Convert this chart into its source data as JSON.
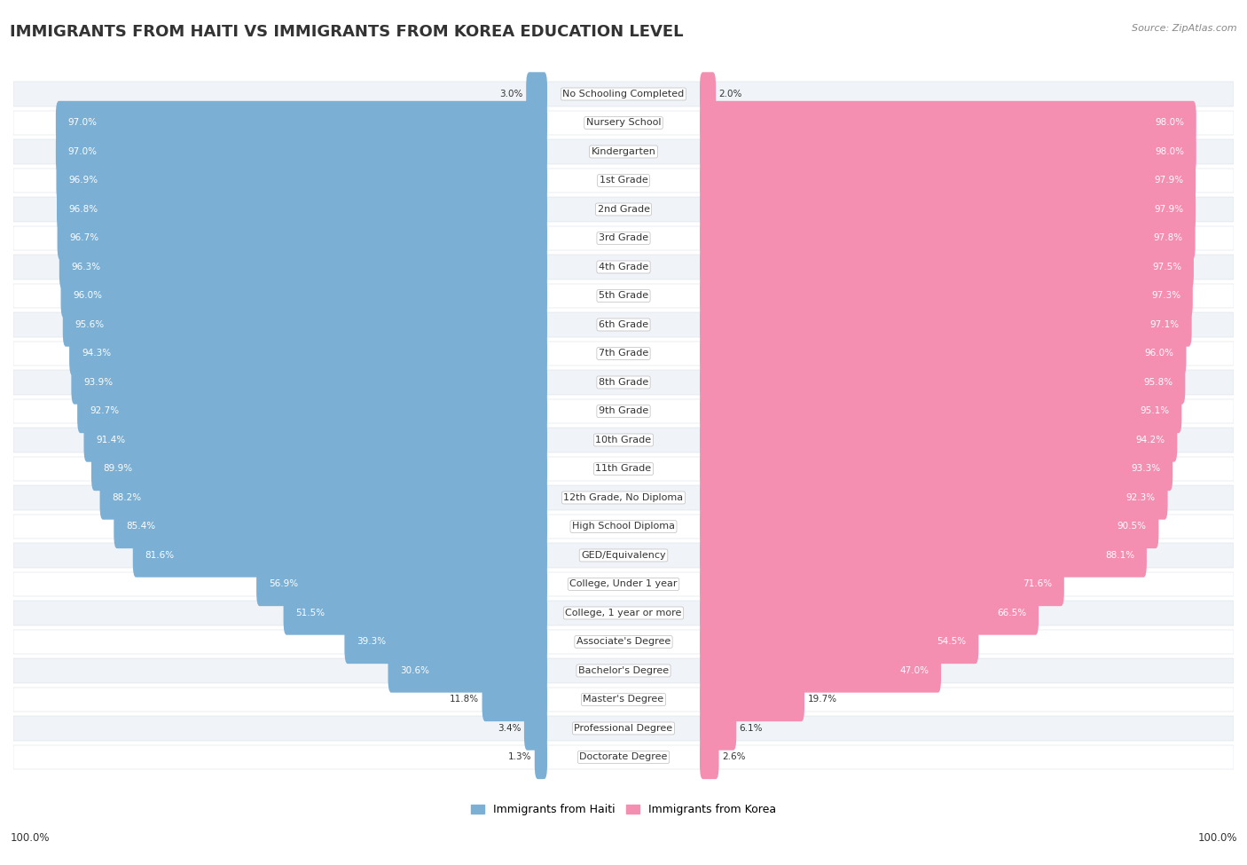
{
  "title": "IMMIGRANTS FROM HAITI VS IMMIGRANTS FROM KOREA EDUCATION LEVEL",
  "source": "Source: ZipAtlas.com",
  "categories": [
    "No Schooling Completed",
    "Nursery School",
    "Kindergarten",
    "1st Grade",
    "2nd Grade",
    "3rd Grade",
    "4th Grade",
    "5th Grade",
    "6th Grade",
    "7th Grade",
    "8th Grade",
    "9th Grade",
    "10th Grade",
    "11th Grade",
    "12th Grade, No Diploma",
    "High School Diploma",
    "GED/Equivalency",
    "College, Under 1 year",
    "College, 1 year or more",
    "Associate's Degree",
    "Bachelor's Degree",
    "Master's Degree",
    "Professional Degree",
    "Doctorate Degree"
  ],
  "haiti_values": [
    3.0,
    97.0,
    97.0,
    96.9,
    96.8,
    96.7,
    96.3,
    96.0,
    95.6,
    94.3,
    93.9,
    92.7,
    91.4,
    89.9,
    88.2,
    85.4,
    81.6,
    56.9,
    51.5,
    39.3,
    30.6,
    11.8,
    3.4,
    1.3
  ],
  "korea_values": [
    2.0,
    98.0,
    98.0,
    97.9,
    97.9,
    97.8,
    97.5,
    97.3,
    97.1,
    96.0,
    95.8,
    95.1,
    94.2,
    93.3,
    92.3,
    90.5,
    88.1,
    71.6,
    66.5,
    54.5,
    47.0,
    19.7,
    6.1,
    2.6
  ],
  "haiti_color": "#7bafd4",
  "korea_color": "#f48fb1",
  "label_color": "#333333",
  "title_fontsize": 13,
  "label_fontsize": 8.0,
  "value_fontsize": 7.5,
  "legend_fontsize": 9,
  "footer_100_fontsize": 8.5,
  "row_colors": [
    "#f0f4f8",
    "#ffffff"
  ]
}
